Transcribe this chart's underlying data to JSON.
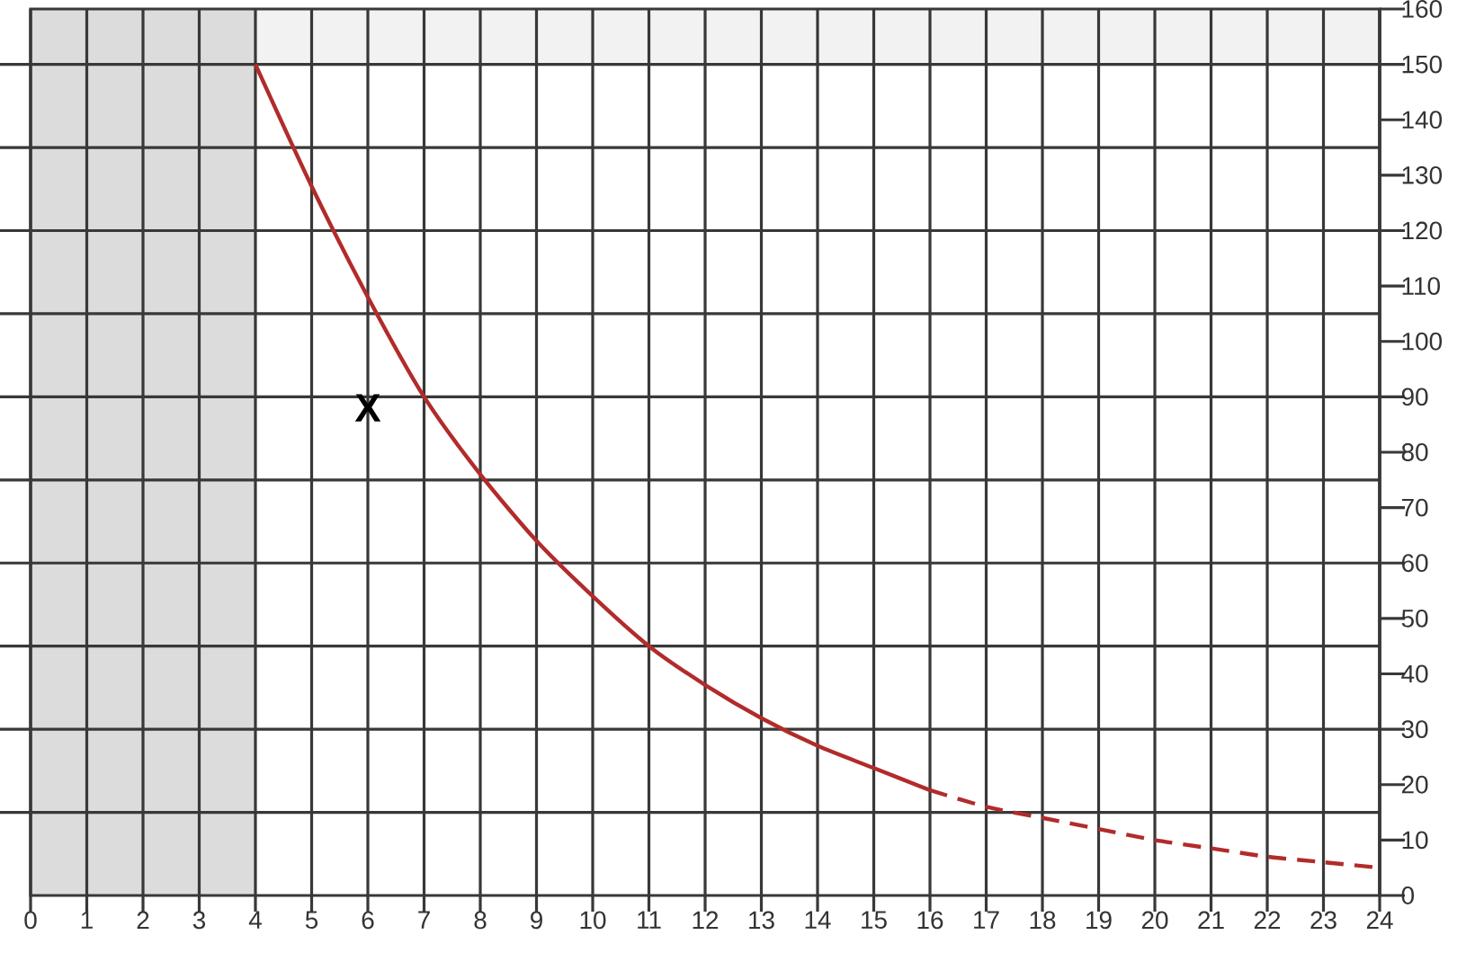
{
  "chart_data": {
    "type": "line",
    "xlim": [
      0,
      24
    ],
    "xticks": [
      0,
      1,
      2,
      3,
      4,
      5,
      6,
      7,
      8,
      9,
      10,
      11,
      12,
      13,
      14,
      15,
      16,
      17,
      18,
      19,
      20,
      21,
      22,
      23,
      24
    ],
    "ylim": [
      0,
      160
    ],
    "yticks": [
      0,
      10,
      20,
      30,
      40,
      50,
      60,
      70,
      80,
      90,
      100,
      110,
      120,
      130,
      140,
      150,
      160
    ],
    "grid": "x",
    "series": [
      {
        "color": "#b22b2b",
        "line_style": "solid",
        "x": [
          4,
          5,
          6,
          7,
          8,
          9,
          10,
          11,
          12,
          13,
          14,
          15,
          16
        ],
        "values": [
          150,
          128,
          108,
          90,
          76,
          64,
          54,
          45,
          38,
          32,
          27,
          23,
          19
        ]
      },
      {
        "color": "#b22b2b",
        "line_style": "dashed",
        "x": [
          16,
          17,
          18,
          19,
          20,
          21,
          22,
          23,
          24
        ],
        "values": [
          19,
          16,
          14,
          12,
          10,
          8.5,
          7,
          6,
          5
        ]
      }
    ],
    "ref_lines": [
      {
        "axis": "y",
        "value": 15,
        "color": "#383838"
      },
      {
        "axis": "y",
        "value": 30,
        "color": "#383838"
      },
      {
        "axis": "y",
        "value": 45,
        "color": "#383838"
      },
      {
        "axis": "y",
        "value": 60,
        "color": "#383838"
      },
      {
        "axis": "y",
        "value": 75,
        "color": "#383838"
      },
      {
        "axis": "y",
        "value": 90,
        "color": "#383838"
      },
      {
        "axis": "y",
        "value": 105,
        "color": "#383838"
      },
      {
        "axis": "y",
        "value": 120,
        "color": "#383838"
      },
      {
        "axis": "y",
        "value": 135,
        "color": "#383838"
      },
      {
        "axis": "y",
        "value": 150,
        "color": "#383838"
      }
    ],
    "bands": [
      {
        "axis": "y",
        "from": 150,
        "to": 160,
        "color": "#f2f2f2"
      },
      {
        "axis": "x",
        "from": 0,
        "to": 4,
        "color": "#dcdcdc"
      }
    ],
    "annotations": [
      "X"
    ]
  }
}
